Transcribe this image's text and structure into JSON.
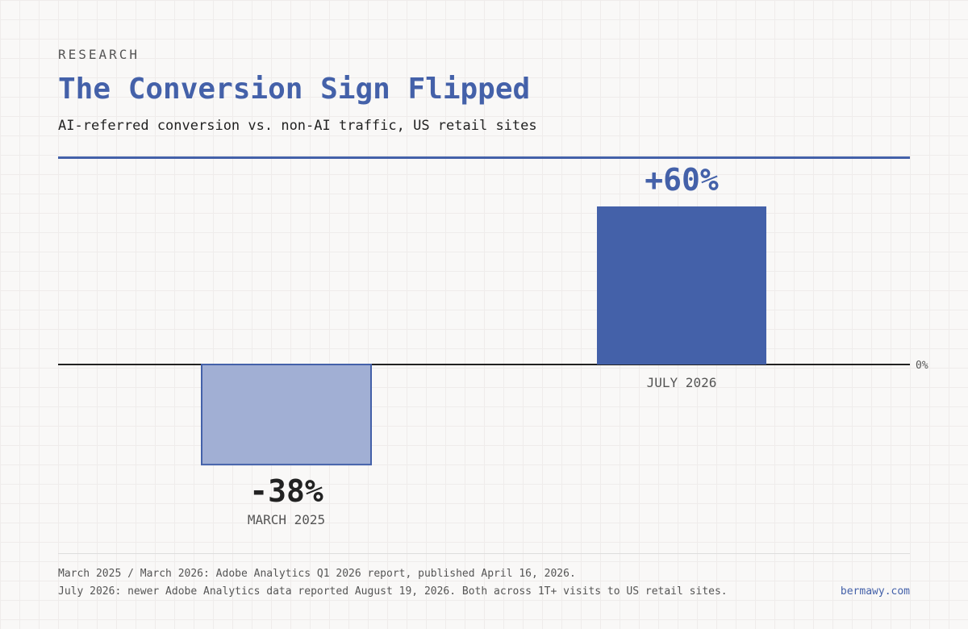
{
  "header": {
    "eyebrow": "RESEARCH",
    "title": "The Conversion Sign Flipped",
    "subtitle": "AI-referred conversion vs. non-AI traffic, US retail sites"
  },
  "chart_data": {
    "type": "bar",
    "categories": [
      "MARCH 2025",
      "JULY 2026"
    ],
    "values": [
      -38,
      60
    ],
    "value_labels": [
      "-38%",
      "+60%"
    ],
    "baseline_label": "0%",
    "ylim": [
      -45,
      60
    ],
    "grid": false,
    "colors": {
      "negative_fill": "#a1afd4",
      "negative_stroke": "#4461a9",
      "positive_fill": "#4461a9",
      "negative_label": "#222222",
      "positive_label": "#4461a9",
      "baseline": "#222222"
    }
  },
  "footer": {
    "source_line_1": "March 2025 / March 2026: Adobe Analytics Q1 2026 report, published April 16, 2026.",
    "source_line_2": "July 2026: newer Adobe Analytics data reported August 19, 2026. Both across 1T+ visits to US retail sites.",
    "site": "bermawy.com"
  }
}
